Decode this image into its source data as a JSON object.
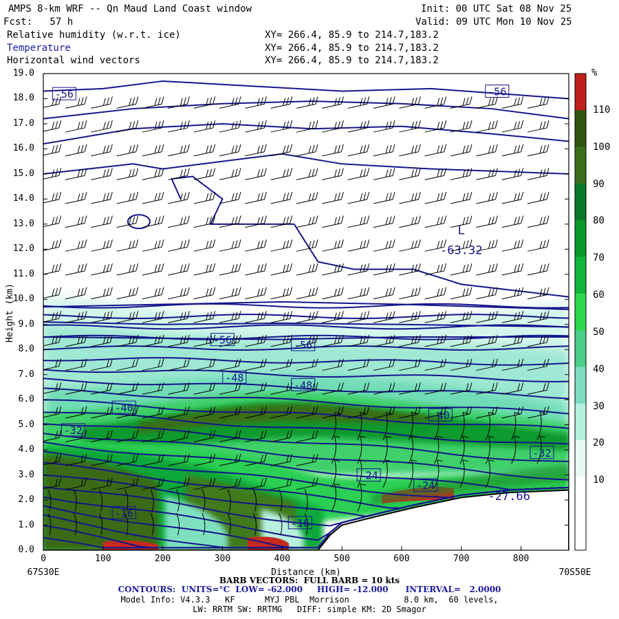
{
  "header": {
    "title": "AMPS 8-km WRF -- Qn Maud Land Coast window",
    "forecast": "Fcst:   57 h",
    "init": "Init: 00 UTC Sat 08 Nov 25",
    "valid": "Valid: 09 UTC Mon 10 Nov 25",
    "field1": "Relative humidity (w.r.t. ice)",
    "field2": "Temperature",
    "field3": "Horizontal wind vectors",
    "xy1": "XY= 266.4, 85.9 to 214.7,183.2",
    "xy2": "XY= 266.4, 85.9 to 214.7,183.2",
    "xy3": "XY= 266.4, 85.9 to 214.7,183.2"
  },
  "axes": {
    "ylabel": "Height (km)",
    "xlabel": "Distance (km)",
    "left_end": "67S30E",
    "right_end": "70S50E"
  },
  "colorbar": {
    "unit": "%",
    "ticks": [
      "110",
      "100",
      "90",
      "80",
      "70",
      "60",
      "50",
      "40",
      "30",
      "20",
      "10"
    ],
    "colors": [
      "#ffffff",
      "#ffffff",
      "#e6faf3",
      "#b4f0de",
      "#7ddcc0",
      "#4acf88",
      "#2bd84a",
      "#10b83a",
      "#0a9a2a",
      "#07782a",
      "#3a6e1a",
      "#2e5510",
      "#c0201a"
    ]
  },
  "chart_data": {
    "type": "heatmap",
    "title": "Relative humidity (w.r.t. ice), Temperature, Horizontal wind vectors",
    "xlabel": "Distance (km)",
    "ylabel": "Height (km)",
    "xlim": [
      0,
      880
    ],
    "ylim": [
      0,
      19
    ],
    "xticks": [
      0,
      100,
      200,
      300,
      400,
      500,
      600,
      700,
      800
    ],
    "yticks": [
      "0.0",
      "1.0",
      "2.0",
      "3.0",
      "4.0",
      "5.0",
      "6.0",
      "7.0",
      "8.0",
      "9.0",
      "10.0",
      "11.0",
      "12.0",
      "13.0",
      "14.0",
      "15.0",
      "16.0",
      "17.0",
      "18.0",
      "19.0"
    ],
    "contour_labels": [
      {
        "text": "-56",
        "x": 35,
        "y": 18.2
      },
      {
        "text": "-56",
        "x": 760,
        "y": 18.3
      },
      {
        "text": "-56",
        "x": 300,
        "y": 8.4
      },
      {
        "text": "-56",
        "x": 435,
        "y": 8.2
      },
      {
        "text": "-48",
        "x": 320,
        "y": 6.9
      },
      {
        "text": "-48",
        "x": 435,
        "y": 6.6
      },
      {
        "text": "-40",
        "x": 135,
        "y": 5.7
      },
      {
        "text": "-40",
        "x": 665,
        "y": 5.4
      },
      {
        "text": "-32",
        "x": 50,
        "y": 4.8
      },
      {
        "text": "-32",
        "x": 835,
        "y": 3.9
      },
      {
        "text": "-24",
        "x": 545,
        "y": 3.0
      },
      {
        "text": "-24",
        "x": 640,
        "y": 2.6
      },
      {
        "text": "-16",
        "x": 135,
        "y": 1.5
      },
      {
        "text": "-16",
        "x": 430,
        "y": 1.1
      }
    ],
    "extrema": [
      {
        "text": "L",
        "x": 700,
        "y": 12.6
      },
      {
        "text": "-63.32",
        "x": 700,
        "y": 11.8
      },
      {
        "text": "-27.66",
        "x": 780,
        "y": 2.0
      }
    ],
    "terrain_km": [
      [
        0,
        0
      ],
      [
        460,
        0
      ],
      [
        480,
        0.6
      ],
      [
        500,
        1.0
      ],
      [
        550,
        1.3
      ],
      [
        620,
        1.7
      ],
      [
        700,
        2.1
      ],
      [
        780,
        2.3
      ],
      [
        880,
        2.4
      ]
    ]
  },
  "footer": {
    "barb": "BARB VECTORS:  FULL BARB = 10 kts",
    "contours": "CONTOURS:  UNITS=°C  LOW= -62.000     HIGH= -12.000      INTERVAL=   2.0000",
    "model1": "Model Info: V4.3.3   KF      MYJ PBL  Morrison           8.0 km,  60 levels,",
    "model2": "LW: RRTM SW: RRTMG   DIFF: simple KM: 2D Smagor"
  }
}
